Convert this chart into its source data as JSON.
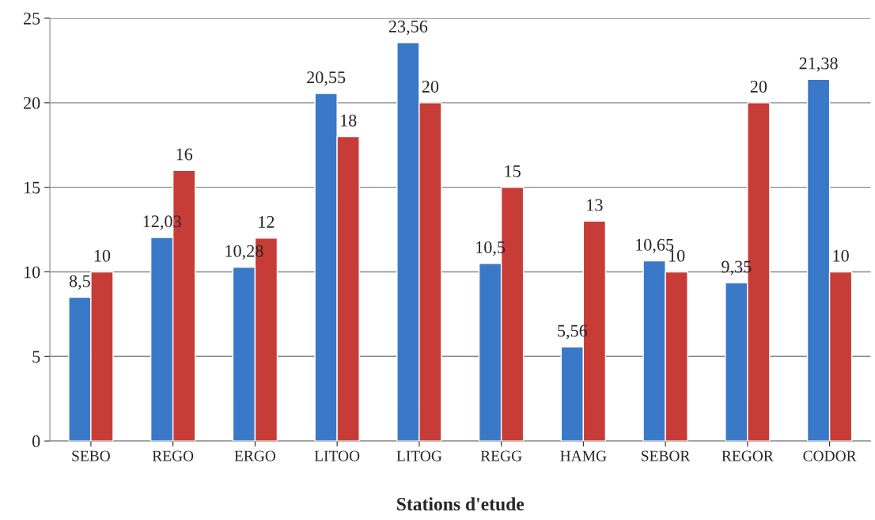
{
  "chart_data": {
    "type": "bar",
    "xlabel": "Stations d'etude",
    "categories": [
      "SEBO",
      "REGO",
      "ERGO",
      "LITOO",
      "LITOG",
      "REGG",
      "HAMG",
      "SEBOR",
      "REGOR",
      "CODOR"
    ],
    "series": [
      {
        "color": "#3a78c8",
        "values": [
          8.5,
          12.03,
          10.28,
          20.55,
          23.56,
          10.5,
          5.56,
          10.65,
          9.35,
          21.38
        ],
        "value_labels": [
          "8,5",
          "12,03",
          "10,28",
          "20,55",
          "23,56",
          "10,5",
          "5,56",
          "10,65",
          "9,35",
          "21,38"
        ]
      },
      {
        "color": "#c83c37",
        "values": [
          10,
          16,
          12,
          18,
          20,
          15,
          13,
          10,
          20,
          10
        ],
        "value_labels": [
          "10",
          "16",
          "12",
          "18",
          "20",
          "15",
          "13",
          "10",
          "20",
          "10"
        ]
      }
    ],
    "ylim": [
      0,
      25
    ],
    "yticks": [
      0,
      5,
      10,
      15,
      20,
      25
    ],
    "grid": "y"
  }
}
